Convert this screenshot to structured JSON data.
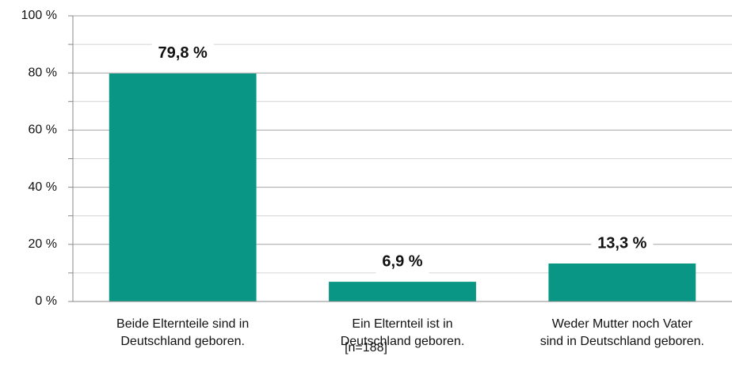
{
  "chart_data": {
    "type": "bar",
    "categories": [
      [
        "Beide Elternteile sind in",
        "Deutschland geboren."
      ],
      [
        "Ein Elternteil ist in",
        "Deutschland geboren."
      ],
      [
        "Weder Mutter noch Vater",
        "sind in Deutschland geboren."
      ]
    ],
    "values": [
      79.8,
      6.9,
      13.3
    ],
    "value_labels": [
      "79,8 %",
      "6,9 %",
      "13,3 %"
    ],
    "color": "#0a9684",
    "ylim": [
      0,
      100
    ],
    "yticks": [
      {
        "value": 0,
        "label": "0 %"
      },
      {
        "value": 20,
        "label": "20 %"
      },
      {
        "value": 40,
        "label": "40 %"
      },
      {
        "value": 60,
        "label": "60 %"
      },
      {
        "value": 80,
        "label": "80 %"
      },
      {
        "value": 100,
        "label": "100 %"
      }
    ],
    "yminorticks": [
      10,
      30,
      50,
      70,
      90
    ],
    "grid": true,
    "note": "[n=188]"
  }
}
